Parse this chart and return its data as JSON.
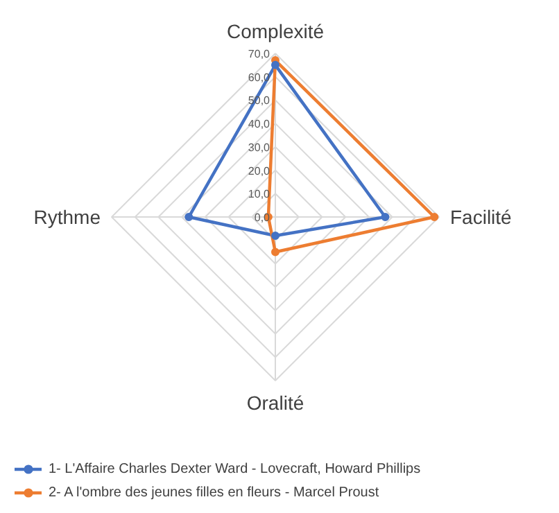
{
  "chart_data": {
    "type": "radar",
    "categories": [
      "Complexité",
      "Facilité",
      "Oralité",
      "Rythme"
    ],
    "ylim": [
      0,
      70
    ],
    "yticks": [
      {
        "value": 0,
        "label": "0,0"
      },
      {
        "value": 10,
        "label": "10,0"
      },
      {
        "value": 20,
        "label": "20,0"
      },
      {
        "value": 30,
        "label": "30,0"
      },
      {
        "value": 40,
        "label": "40,0"
      },
      {
        "value": 50,
        "label": "50,0"
      },
      {
        "value": 60,
        "label": "60,0"
      },
      {
        "value": 70,
        "label": "70,0"
      }
    ],
    "series": [
      {
        "name": "1- L'Affaire Charles Dexter Ward - Lovecraft, Howard Phillips",
        "color": "#4472c4",
        "values": [
          65,
          47,
          8,
          37
        ]
      },
      {
        "name": "2- A l'ombre des jeunes filles en fleurs - Marcel Proust",
        "color": "#ed7d31",
        "values": [
          67,
          68,
          15,
          3
        ]
      }
    ],
    "marker": "circle",
    "legend": "bottom",
    "grid": true
  }
}
